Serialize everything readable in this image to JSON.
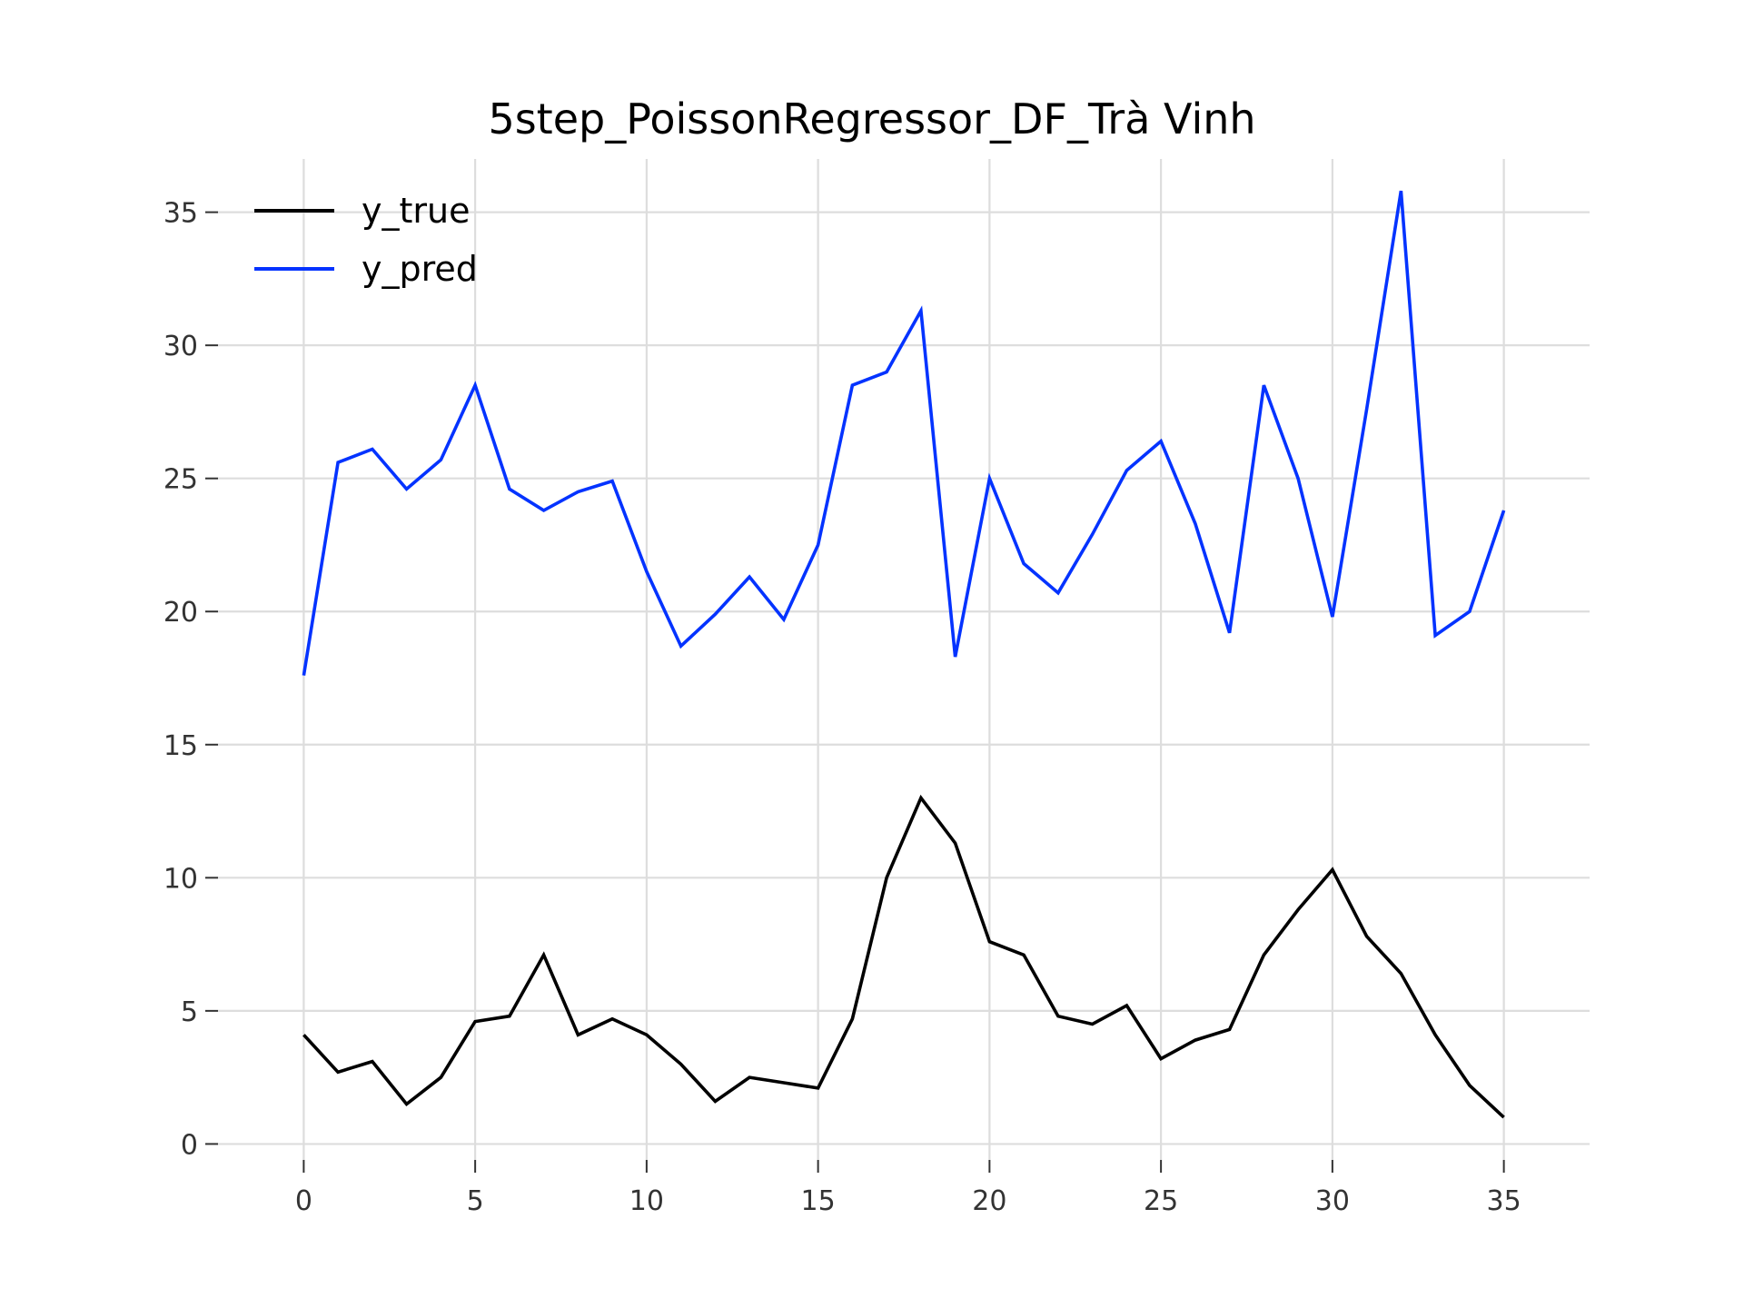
{
  "chart_data": {
    "type": "line",
    "title": "5step_PoissonRegressor_DF_Trà Vinh",
    "xlabel": "",
    "ylabel": "",
    "xlim": [
      -2.5,
      37.5
    ],
    "ylim": [
      -0.6,
      37.0
    ],
    "x_ticks": [
      0,
      5,
      10,
      15,
      20,
      25,
      30,
      35
    ],
    "y_ticks": [
      0,
      5,
      10,
      15,
      20,
      25,
      30,
      35
    ],
    "grid": true,
    "legend_position": "top-left",
    "x": [
      0,
      1,
      2,
      3,
      4,
      5,
      6,
      7,
      8,
      9,
      10,
      11,
      12,
      13,
      14,
      15,
      16,
      17,
      18,
      19,
      20,
      21,
      22,
      23,
      24,
      25,
      26,
      27,
      28,
      29,
      30,
      31,
      32,
      33,
      34,
      35
    ],
    "series": [
      {
        "name": "y_true",
        "color": "#000000",
        "values": [
          4.1,
          2.7,
          3.1,
          1.5,
          2.5,
          4.6,
          4.8,
          7.1,
          4.1,
          4.7,
          4.1,
          3.0,
          1.6,
          2.5,
          2.3,
          2.1,
          4.7,
          10.0,
          13.0,
          11.3,
          7.6,
          7.1,
          4.8,
          4.5,
          5.2,
          3.2,
          3.9,
          4.3,
          7.1,
          8.8,
          10.3,
          7.8,
          6.4,
          4.1,
          2.2,
          1.0
        ]
      },
      {
        "name": "y_pred",
        "color": "#0433ff",
        "values": [
          17.6,
          25.6,
          26.1,
          24.6,
          25.7,
          28.5,
          24.6,
          23.8,
          24.5,
          24.9,
          21.5,
          18.7,
          19.9,
          21.3,
          19.7,
          22.5,
          28.5,
          29.0,
          31.3,
          18.3,
          25.0,
          21.8,
          20.7,
          22.9,
          25.3,
          26.4,
          23.3,
          19.2,
          28.5,
          25.0,
          19.8,
          27.6,
          35.8,
          19.1,
          20.0,
          23.8
        ]
      }
    ]
  }
}
